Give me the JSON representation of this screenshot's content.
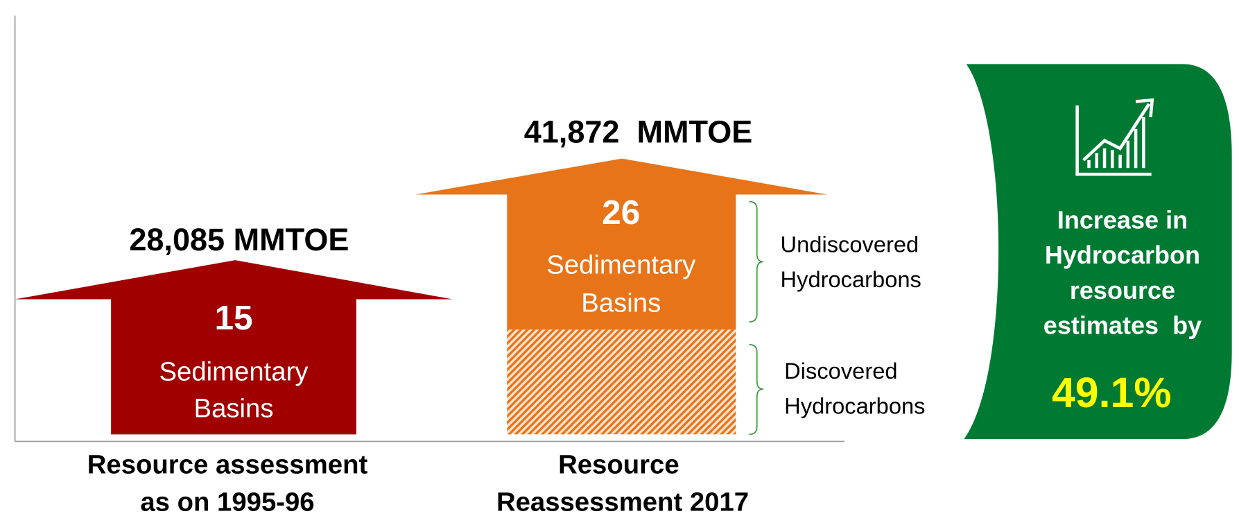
{
  "left": {
    "total": "28,085 MMTOE",
    "basins": "15",
    "basins_label": [
      "Sedimentary",
      "Basins"
    ],
    "caption": [
      "Resource assessment",
      "as on 1995-96"
    ]
  },
  "right": {
    "total": "41,872  MMTOE",
    "basins": "26",
    "basins_label": [
      "Sedimentary",
      "Basins"
    ],
    "caption": [
      "Resource",
      "Reassessment 2017"
    ],
    "undiscovered": [
      "Undiscovered",
      "Hydrocarbons"
    ],
    "discovered": [
      "Discovered",
      "Hydrocarbons"
    ]
  },
  "panel": {
    "text": [
      "Increase in",
      "Hydrocarbon",
      "resource",
      "estimates  by"
    ],
    "percent": "49.1%"
  }
}
